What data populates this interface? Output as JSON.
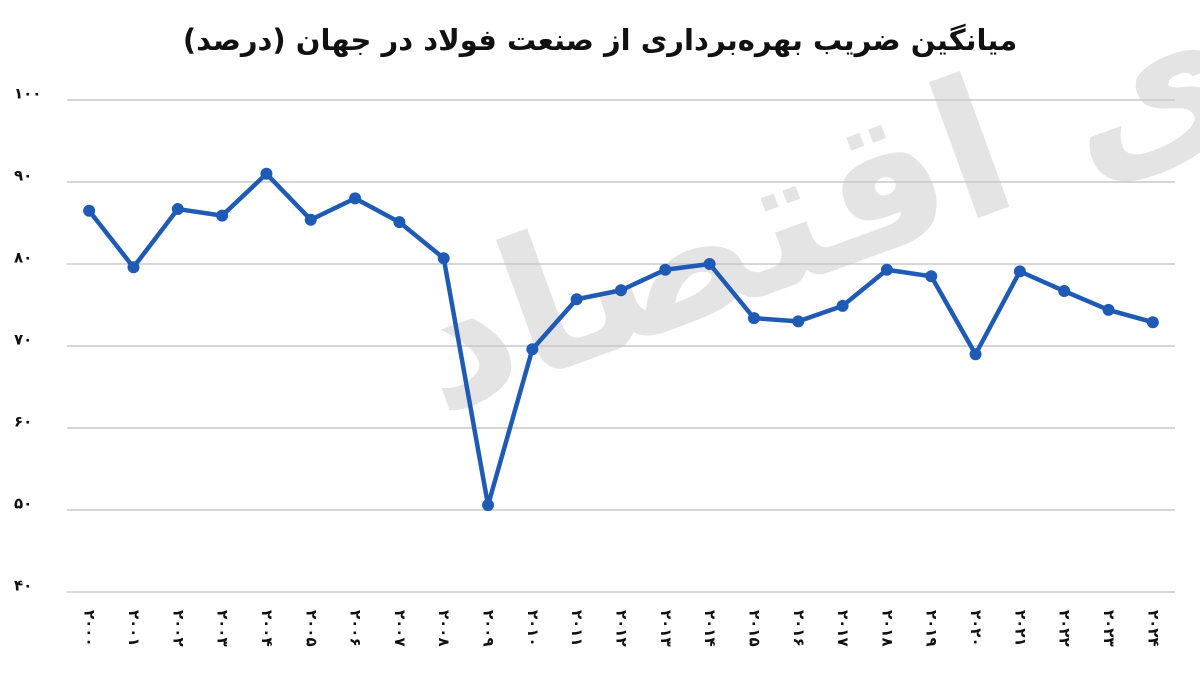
{
  "chart_data": {
    "type": "line",
    "title": "میانگین ضریب بهره‌برداری از صنعت فولاد در جهان (درصد)",
    "watermark": "دنیای اقتصاد",
    "categories": [
      "۲۰۰۰",
      "۲۰۰۱",
      "۲۰۰۲",
      "۲۰۰۳",
      "۲۰۰۴",
      "۲۰۰۵",
      "۲۰۰۶",
      "۲۰۰۷",
      "۲۰۰۸",
      "۲۰۰۹",
      "۲۰۱۰",
      "۲۰۱۱",
      "۲۰۱۲",
      "۲۰۱۳",
      "۲۰۱۴",
      "۲۰۱۵",
      "۲۰۱۶",
      "۲۰۱۷",
      "۲۰۱۸",
      "۲۰۱۹",
      "۲۰۲۰",
      "۲۰۲۱",
      "۲۰۲۲",
      "۲۰۲۳",
      "۲۰۲۴"
    ],
    "values": [
      86.5,
      79.6,
      86.7,
      85.9,
      91.0,
      85.4,
      88.0,
      85.1,
      80.7,
      50.6,
      69.6,
      75.7,
      76.8,
      79.3,
      80.0,
      73.4,
      73.0,
      74.9,
      79.3,
      78.5,
      69.0,
      79.1,
      76.7,
      74.4,
      72.9
    ],
    "color": "#1f5bb5",
    "ylim": [
      40,
      100
    ],
    "yticks": [
      {
        "value": 40,
        "label": "۴۰"
      },
      {
        "value": 50,
        "label": "۵۰"
      },
      {
        "value": 60,
        "label": "۶۰"
      },
      {
        "value": 70,
        "label": "۷۰"
      },
      {
        "value": 80,
        "label": "۸۰"
      },
      {
        "value": 90,
        "label": "۹۰"
      },
      {
        "value": 100,
        "label": "۱۰۰"
      }
    ],
    "grid": true
  }
}
